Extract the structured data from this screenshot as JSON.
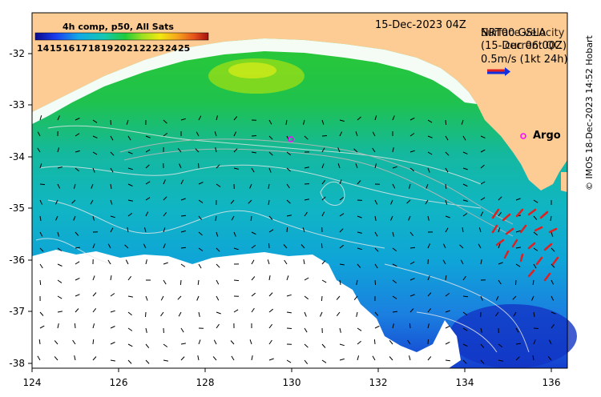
{
  "map": {
    "date_label": "15-Dec-2023 04Z",
    "colorbar_title": "4h comp, p50, All Sats",
    "colorbar_ticks": [
      "14",
      "15",
      "16",
      "17",
      "18",
      "19",
      "20",
      "21",
      "22",
      "23",
      "24",
      "25"
    ],
    "velocity_title": "NRT00 GSLA",
    "velocity_subtitle": "(15-Dec 06:00Z)",
    "velocity_overlay_title": "Surface velocity",
    "velocity_overlay_subtitle": "current QC",
    "scale_label": "0.5m/s (1kt 24h)",
    "argo_label": "Argo",
    "credit": "© IMOS 18-Dec-2023 14:52 Hobart",
    "x_ticks": [
      "124",
      "126",
      "128",
      "130",
      "132",
      "134",
      "136"
    ],
    "y_ticks": [
      "-32",
      "-33",
      "-34",
      "-35",
      "-36",
      "-37",
      "-38"
    ],
    "land_color": "#fdcb94",
    "cloud_color": "#ffffff"
  }
}
